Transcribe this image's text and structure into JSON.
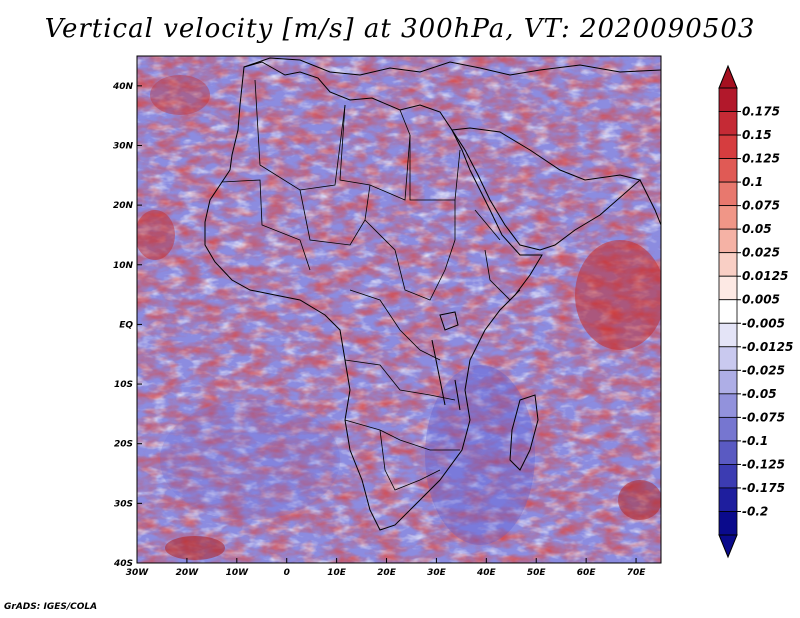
{
  "title": "Vertical velocity [m/s] at 300hPa, VT: 2020090503",
  "credit": "GrADS: IGES/COLA",
  "map": {
    "lat_labels": [
      "40N",
      "30N",
      "20N",
      "10N",
      "EQ",
      "10S",
      "20S",
      "30S",
      "40S"
    ],
    "lon_labels": [
      "30W",
      "20W",
      "10W",
      "0",
      "10E",
      "20E",
      "30E",
      "40E",
      "50E",
      "60E",
      "70E"
    ],
    "lon_range": [
      -30,
      75
    ],
    "lat_range": [
      -40,
      45
    ]
  },
  "colorbar": {
    "labels": [
      "0.175",
      "0.15",
      "0.125",
      "0.1",
      "0.075",
      "0.05",
      "0.025",
      "0.0125",
      "0.005",
      "-0.005",
      "-0.0125",
      "-0.025",
      "-0.05",
      "-0.075",
      "-0.1",
      "-0.125",
      "-0.175",
      "-0.2"
    ],
    "colors": [
      "#b2182b",
      "#c52a35",
      "#d63d3f",
      "#e05a55",
      "#e8786e",
      "#f09687",
      "#f5b2a5",
      "#f9cfc5",
      "#fde9e4",
      "#ffffff",
      "#e4e4f7",
      "#c9c9ef",
      "#aeaee6",
      "#9292dc",
      "#7676d0",
      "#5a5ac2",
      "#3c3cb2",
      "#1e1e9e",
      "#0a0a8c"
    ],
    "top_arrow_color": "#a51020",
    "bottom_arrow_color": "#0a0a8c"
  }
}
